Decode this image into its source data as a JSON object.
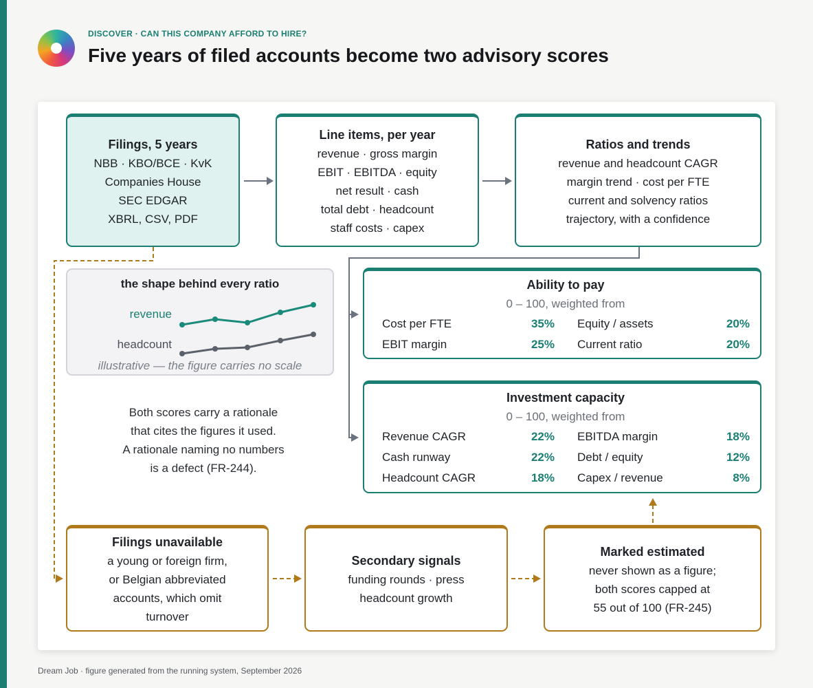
{
  "header": {
    "eyebrow": "DISCOVER · CAN THIS COMPANY AFFORD TO HIRE?",
    "title": "Five years of filed accounts become two advisory scores"
  },
  "nodes": [
    {
      "title": "Filings, 5 years",
      "lines": [
        "NBB · KBO/BCE · KvK",
        "Companies House",
        "SEC EDGAR",
        "XBRL, CSV, PDF"
      ]
    },
    {
      "title": "Line items, per year",
      "lines": [
        "revenue · gross margin",
        "EBIT · EBITDA · equity",
        "net result · cash",
        "total debt · headcount",
        "staff costs · capex"
      ]
    },
    {
      "title": "Ratios and trends",
      "lines": [
        "revenue and headcount CAGR",
        "margin trend · cost per FTE",
        "current and solvency ratios",
        "trajectory, with a confidence"
      ]
    }
  ],
  "sketch": {
    "title": "the shape behind every ratio",
    "series": [
      "revenue",
      "headcount"
    ],
    "caption": "illustrative — the figure carries no scale"
  },
  "note": [
    "Both scores carry a rationale",
    "that cites the figures it used.",
    "A rationale naming no numbers",
    "is a defect (FR-244)."
  ],
  "scores": [
    {
      "title": "Ability to pay",
      "subtitle": "0 – 100, weighted from",
      "weights": [
        {
          "label": "Cost per FTE",
          "share": "35%"
        },
        {
          "label": "Equity / assets",
          "share": "20%"
        },
        {
          "label": "EBIT margin",
          "share": "25%"
        },
        {
          "label": "Current ratio",
          "share": "20%"
        }
      ]
    },
    {
      "title": "Investment capacity",
      "subtitle": "0 – 100, weighted from",
      "weights": [
        {
          "label": "Revenue CAGR",
          "share": "22%"
        },
        {
          "label": "EBITDA margin",
          "share": "18%"
        },
        {
          "label": "Cash runway",
          "share": "22%"
        },
        {
          "label": "Debt / equity",
          "share": "12%"
        },
        {
          "label": "Headcount CAGR",
          "share": "18%"
        },
        {
          "label": "Capex / revenue",
          "share": "8%"
        }
      ]
    }
  ],
  "fallback": [
    {
      "title": "Filings unavailable",
      "lines": [
        "a young or foreign firm,",
        "or Belgian abbreviated",
        "accounts, which omit",
        "turnover"
      ]
    },
    {
      "title": "Secondary signals",
      "lines": [
        "funding rounds · press",
        "headcount growth"
      ]
    },
    {
      "title": "Marked estimated",
      "lines": [
        "never shown as a figure;",
        "both scores capped at",
        "55 out of 100 (FR-245)"
      ]
    }
  ],
  "footer": "Dream Job · figure generated from the running system, September 2026"
}
